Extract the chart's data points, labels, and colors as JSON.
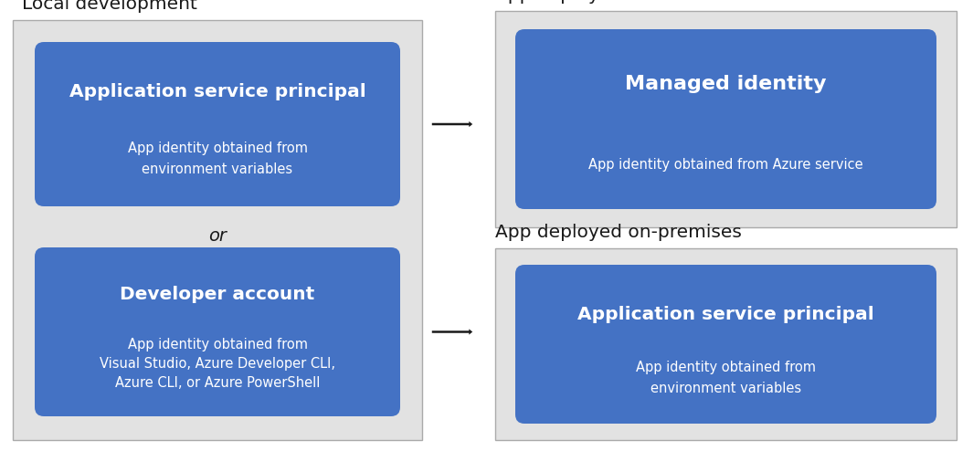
{
  "bg_color": "#ffffff",
  "outer_bg": "#e2e2e2",
  "blue_color": "#4472C4",
  "white_text": "#ffffff",
  "dark_text": "#1a1a1a",
  "title_left": "Local development",
  "title_right_top": "App deployed to Azure",
  "title_right_bottom": "App deployed on-premises",
  "box1_title": "Application service principal",
  "box1_sub": "App identity obtained from\nenvironment variables",
  "box2_title": "Developer account",
  "box2_sub": "App identity obtained from\nVisual Studio, Azure Developer CLI,\nAzure CLI, or Azure PowerShell",
  "box3_title": "Managed identity",
  "box3_sub": "App identity obtained from Azure service",
  "box4_title": "Application service principal",
  "box4_sub": "App identity obtained from\nenvironment variables",
  "or_text": "or",
  "arrow_color": "#1a1a1a"
}
